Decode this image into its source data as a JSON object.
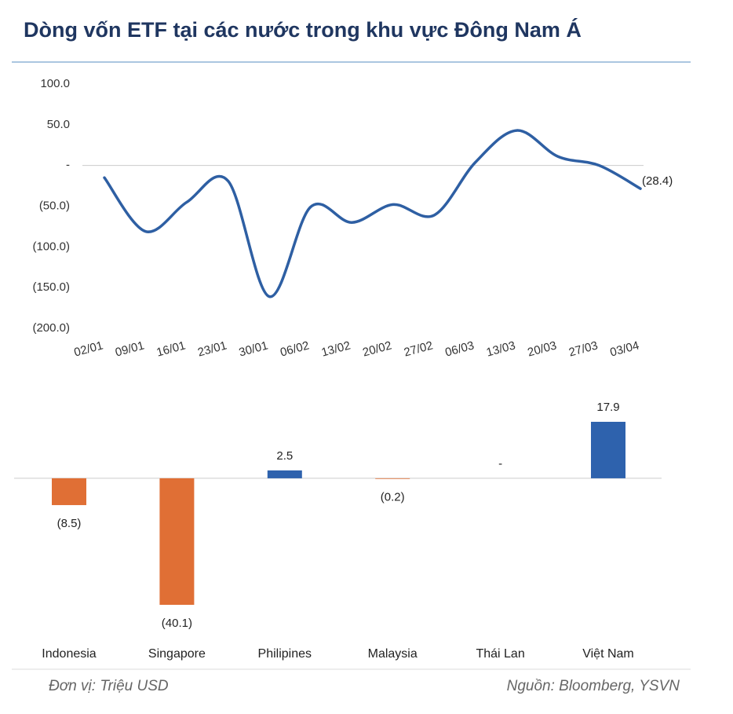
{
  "title": "Dòng vốn ETF tại các nước trong khu vực Đông Nam Á",
  "unit_note": "Đơn vị: Triệu USD",
  "source": "Nguồn: Bloomberg, YSVN",
  "chart_data": [
    {
      "type": "line",
      "categories": [
        "02/01",
        "09/01",
        "16/01",
        "23/01",
        "30/01",
        "06/02",
        "13/02",
        "20/02",
        "27/02",
        "06/03",
        "13/03",
        "20/03",
        "27/03",
        "03/04"
      ],
      "series": [
        {
          "color": "#2e5fa3",
          "values": [
            -15,
            -81,
            -45,
            -19,
            -161,
            -51,
            -70,
            -48,
            -61,
            4,
            43,
            11,
            0,
            -28.4
          ],
          "value_labels": [
            null,
            null,
            null,
            null,
            null,
            null,
            null,
            null,
            null,
            null,
            null,
            null,
            null,
            "(28.4)"
          ]
        }
      ],
      "ylim": [
        -200,
        100
      ],
      "yticks": [
        {
          "value": 100,
          "label": "100.0"
        },
        {
          "value": 50,
          "label": "50.0"
        },
        {
          "value": 0,
          "label": "-"
        },
        {
          "value": -50,
          "label": "(50.0)"
        },
        {
          "value": -100,
          "label": "(100.0)"
        },
        {
          "value": -150,
          "label": "(150.0)"
        },
        {
          "value": -200,
          "label": "(200.0)"
        }
      ]
    },
    {
      "type": "bar",
      "categories": [
        "Indonesia",
        "Singapore",
        "Philipines",
        "Malaysia",
        "Thái Lan",
        "Việt Nam"
      ],
      "values": [
        -8.5,
        -40.1,
        2.5,
        -0.2,
        0,
        17.9
      ],
      "value_labels": [
        "(8.5)",
        "(40.1)",
        "2.5",
        "(0.2)",
        "-",
        "17.9"
      ],
      "colors": [
        "#e06f35",
        "#e06f35",
        "#2e62ad",
        "#e06f35",
        "#2e62ad",
        "#2e62ad"
      ]
    }
  ]
}
